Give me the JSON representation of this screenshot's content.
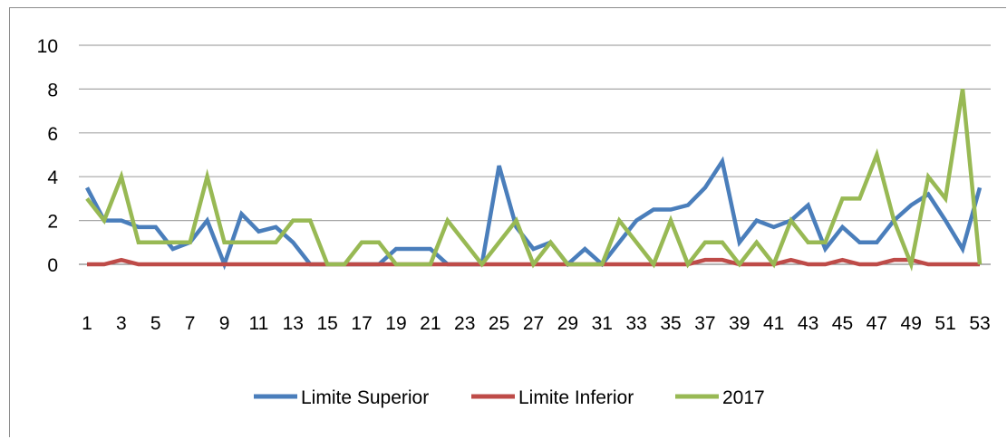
{
  "chart_data": {
    "type": "line",
    "title": "",
    "xlabel": "",
    "ylabel": "",
    "ylim": [
      0,
      10
    ],
    "yticks": [
      0,
      2,
      4,
      6,
      8,
      10
    ],
    "grid": true,
    "legend_position": "bottom",
    "x": [
      1,
      2,
      3,
      4,
      5,
      6,
      7,
      8,
      9,
      10,
      11,
      12,
      13,
      14,
      15,
      16,
      17,
      18,
      19,
      20,
      21,
      22,
      23,
      24,
      25,
      26,
      27,
      28,
      29,
      30,
      31,
      32,
      33,
      34,
      35,
      36,
      37,
      38,
      39,
      40,
      41,
      42,
      43,
      44,
      45,
      46,
      47,
      48,
      49,
      50,
      51,
      52,
      53
    ],
    "xtick_labels": [
      "1",
      "3",
      "5",
      "7",
      "9",
      "11",
      "13",
      "15",
      "17",
      "19",
      "21",
      "23",
      "25",
      "27",
      "29",
      "31",
      "33",
      "35",
      "37",
      "39",
      "41",
      "43",
      "45",
      "47",
      "49",
      "51",
      "53"
    ],
    "series": [
      {
        "name": "Limite Superior",
        "color": "#4a7ebb",
        "values": [
          3.5,
          2.0,
          2.0,
          1.7,
          1.7,
          0.7,
          1.0,
          2.0,
          0.0,
          2.3,
          1.5,
          1.7,
          1.0,
          0.0,
          0.0,
          0.0,
          0.0,
          0.0,
          0.7,
          0.7,
          0.7,
          0.0,
          0.0,
          0.0,
          4.5,
          1.7,
          0.7,
          1.0,
          0.0,
          0.7,
          0.0,
          1.0,
          2.0,
          2.5,
          2.5,
          2.7,
          3.5,
          4.7,
          1.0,
          2.0,
          1.7,
          2.0,
          2.7,
          0.7,
          1.7,
          1.0,
          1.0,
          2.0,
          2.7,
          3.2,
          2.0,
          0.7,
          3.5
        ]
      },
      {
        "name": "Limite Inferior",
        "color": "#be4b48",
        "values": [
          0,
          0,
          0.2,
          0,
          0,
          0,
          0,
          0,
          0,
          0,
          0,
          0,
          0,
          0,
          0,
          0,
          0,
          0,
          0,
          0,
          0,
          0,
          0,
          0,
          0,
          0,
          0,
          0,
          0,
          0,
          0,
          0,
          0,
          0,
          0,
          0,
          0.2,
          0.2,
          0,
          0,
          0,
          0.2,
          0,
          0,
          0.2,
          0,
          0,
          0.2,
          0.2,
          0,
          0,
          0,
          0
        ]
      },
      {
        "name": "2017",
        "color": "#98b954",
        "values": [
          3,
          2,
          4,
          1,
          1,
          1,
          1,
          4,
          1,
          1,
          1,
          1,
          2,
          2,
          0,
          0,
          1,
          1,
          0,
          0,
          0,
          2,
          1,
          0,
          1,
          2,
          0,
          1,
          0,
          0,
          0,
          2,
          1,
          0,
          2,
          0,
          1,
          1,
          0,
          1,
          0,
          2,
          1,
          1,
          3,
          3,
          5,
          2,
          0,
          4,
          3,
          8,
          0
        ]
      }
    ]
  }
}
